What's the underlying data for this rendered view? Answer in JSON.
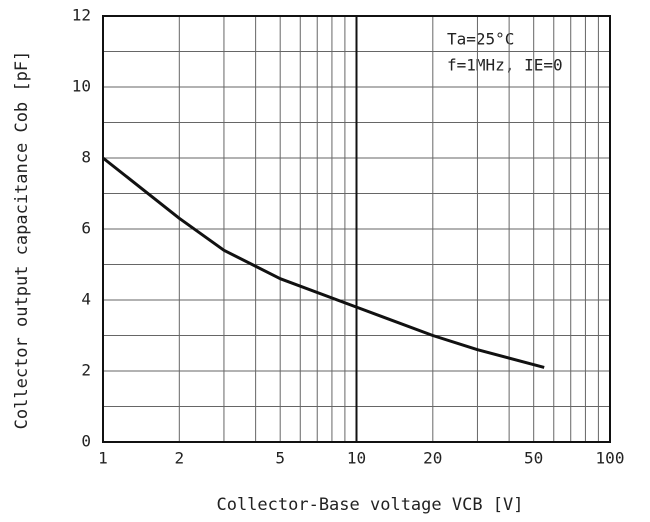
{
  "chart_data": {
    "type": "line",
    "annotations": [
      "Ta=25°C",
      "f=1MHz, IE=0"
    ],
    "xlabel": "Collector-Base voltage VCB [V]",
    "ylabel": "Collector output capacitance Cob [pF]",
    "x": [
      1,
      2,
      3,
      5,
      10,
      20,
      30,
      55
    ],
    "series": [
      {
        "color": "#111111",
        "values": [
          8.0,
          6.3,
          5.4,
          4.6,
          3.8,
          3.0,
          2.6,
          2.1
        ]
      }
    ],
    "xlim": [
      1,
      100
    ],
    "ylim": [
      0,
      12
    ],
    "xscale": "log",
    "xticks": [
      1,
      2,
      5,
      10,
      20,
      50,
      100
    ],
    "xgrid": [
      3,
      4,
      6,
      7,
      8,
      9,
      30,
      40,
      60,
      70,
      80,
      90
    ],
    "yticks": [
      0,
      2,
      4,
      6,
      8,
      10,
      12
    ],
    "ygrid": [
      1,
      3,
      5,
      7,
      9,
      11
    ],
    "grid": true
  }
}
